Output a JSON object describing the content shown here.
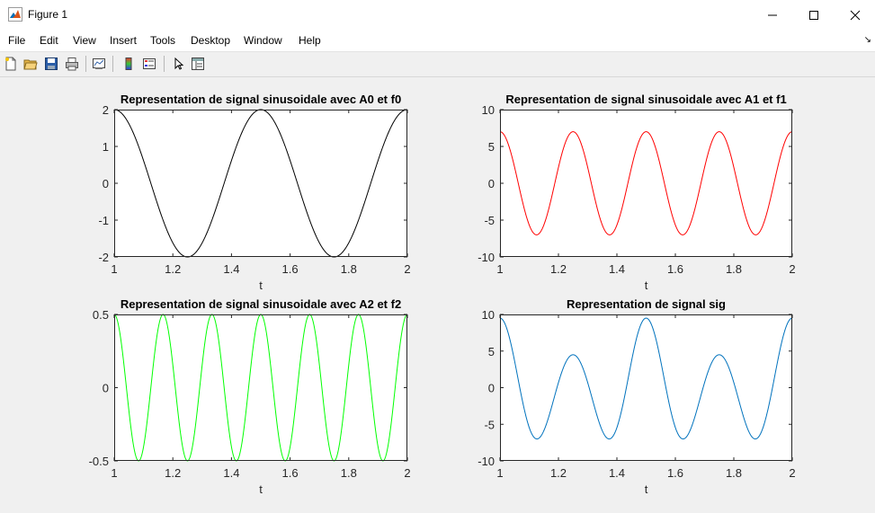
{
  "window": {
    "title": "Figure 1",
    "minimize_glyph": "—",
    "maximize_glyph": "☐",
    "close_glyph": "✕"
  },
  "menu": {
    "items": [
      "File",
      "Edit",
      "View",
      "Insert",
      "Tools",
      "Desktop",
      "Window",
      "Help"
    ]
  },
  "toolbar": {
    "icons": [
      "new-figure-icon",
      "open-file-icon",
      "save-icon",
      "print-icon",
      "link-plot-icon",
      "insert-colorbar-icon",
      "insert-legend-icon",
      "edit-plot-icon",
      "property-editor-icon"
    ]
  },
  "chart_data": [
    {
      "type": "line",
      "title": "Representation de signal sinusoidale avec A0 et f0",
      "xlabel": "t",
      "ylabel": "",
      "xlim": [
        1,
        2
      ],
      "ylim": [
        -2,
        2
      ],
      "xticks": [
        "1",
        "1.2",
        "1.4",
        "1.6",
        "1.8",
        "2"
      ],
      "yticks": [
        "2",
        "1",
        "0",
        "-1",
        "-2"
      ],
      "grid": false,
      "series": [
        {
          "color": "#000000",
          "amplitude": 2,
          "frequency_hz": 2,
          "function": "A*cos(2*pi*f*t)"
        }
      ]
    },
    {
      "type": "line",
      "title": "Representation de signal sinusoidale avec A1 et f1",
      "xlabel": "t",
      "ylabel": "",
      "xlim": [
        1,
        2
      ],
      "ylim": [
        -10,
        10
      ],
      "xticks": [
        "1",
        "1.2",
        "1.4",
        "1.6",
        "1.8",
        "2"
      ],
      "yticks": [
        "10",
        "5",
        "0",
        "-5",
        "-10"
      ],
      "grid": false,
      "series": [
        {
          "color": "#ff0000",
          "amplitude": 7,
          "frequency_hz": 4,
          "function": "A*cos(2*pi*f*t)"
        }
      ]
    },
    {
      "type": "line",
      "title": "Representation de signal sinusoidale avec A2 et f2",
      "xlabel": "t",
      "ylabel": "",
      "xlim": [
        1,
        2
      ],
      "ylim": [
        -0.5,
        0.5
      ],
      "xticks": [
        "1",
        "1.2",
        "1.4",
        "1.6",
        "1.8",
        "2"
      ],
      "yticks": [
        "0.5",
        "0",
        "-0.5"
      ],
      "grid": false,
      "series": [
        {
          "color": "#00ff00",
          "amplitude": 0.5,
          "frequency_hz": 6,
          "function": "A*cos(2*pi*f*t)"
        }
      ]
    },
    {
      "type": "line",
      "title": "Representation de signal sig",
      "xlabel": "t",
      "ylabel": "",
      "xlim": [
        1,
        2
      ],
      "ylim": [
        -10,
        10
      ],
      "xticks": [
        "1",
        "1.2",
        "1.4",
        "1.6",
        "1.8",
        "2"
      ],
      "yticks": [
        "10",
        "5",
        "0",
        "-5",
        "-10"
      ],
      "grid": false,
      "series": [
        {
          "color": "#0072bd",
          "function": "sum of the three signals above",
          "components": [
            {
              "amplitude": 2,
              "frequency_hz": 2
            },
            {
              "amplitude": 7,
              "frequency_hz": 4
            },
            {
              "amplitude": 0.5,
              "frequency_hz": 6
            }
          ]
        }
      ]
    }
  ]
}
